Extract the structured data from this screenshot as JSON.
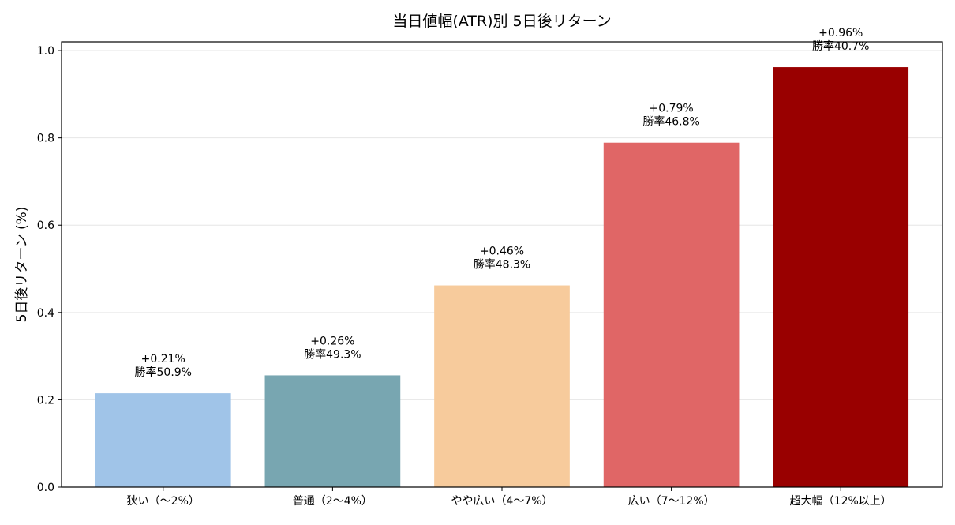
{
  "chart_data": {
    "type": "bar",
    "title": "当日値幅(ATR)別 5日後リターン",
    "xlabel": "",
    "ylabel": "5日後リターン (%)",
    "ylim": [
      0,
      1.02
    ],
    "yticks": [
      0.0,
      0.2,
      0.4,
      0.6,
      0.8,
      1.0
    ],
    "ytick_labels": [
      "0.0",
      "0.2",
      "0.4",
      "0.6",
      "0.8",
      "1.0"
    ],
    "grid": "horizontal",
    "categories": [
      "狭い（〜2%）",
      "普通（2〜4%）",
      "やや広い（4〜7%）",
      "広い（7〜12%）",
      "超大幅（12%以上）"
    ],
    "values": [
      0.215,
      0.256,
      0.462,
      0.789,
      0.962
    ],
    "colors": [
      "#a0c4e8",
      "#78a6b1",
      "#f7cb9c",
      "#e06666",
      "#990000"
    ],
    "data_labels": [
      {
        "return": "+0.21%",
        "win_rate": "勝率50.9%"
      },
      {
        "return": "+0.26%",
        "win_rate": "勝率49.3%"
      },
      {
        "return": "+0.46%",
        "win_rate": "勝率48.3%"
      },
      {
        "return": "+0.79%",
        "win_rate": "勝率46.8%"
      },
      {
        "return": "+0.96%",
        "win_rate": "勝率40.7%"
      }
    ]
  }
}
